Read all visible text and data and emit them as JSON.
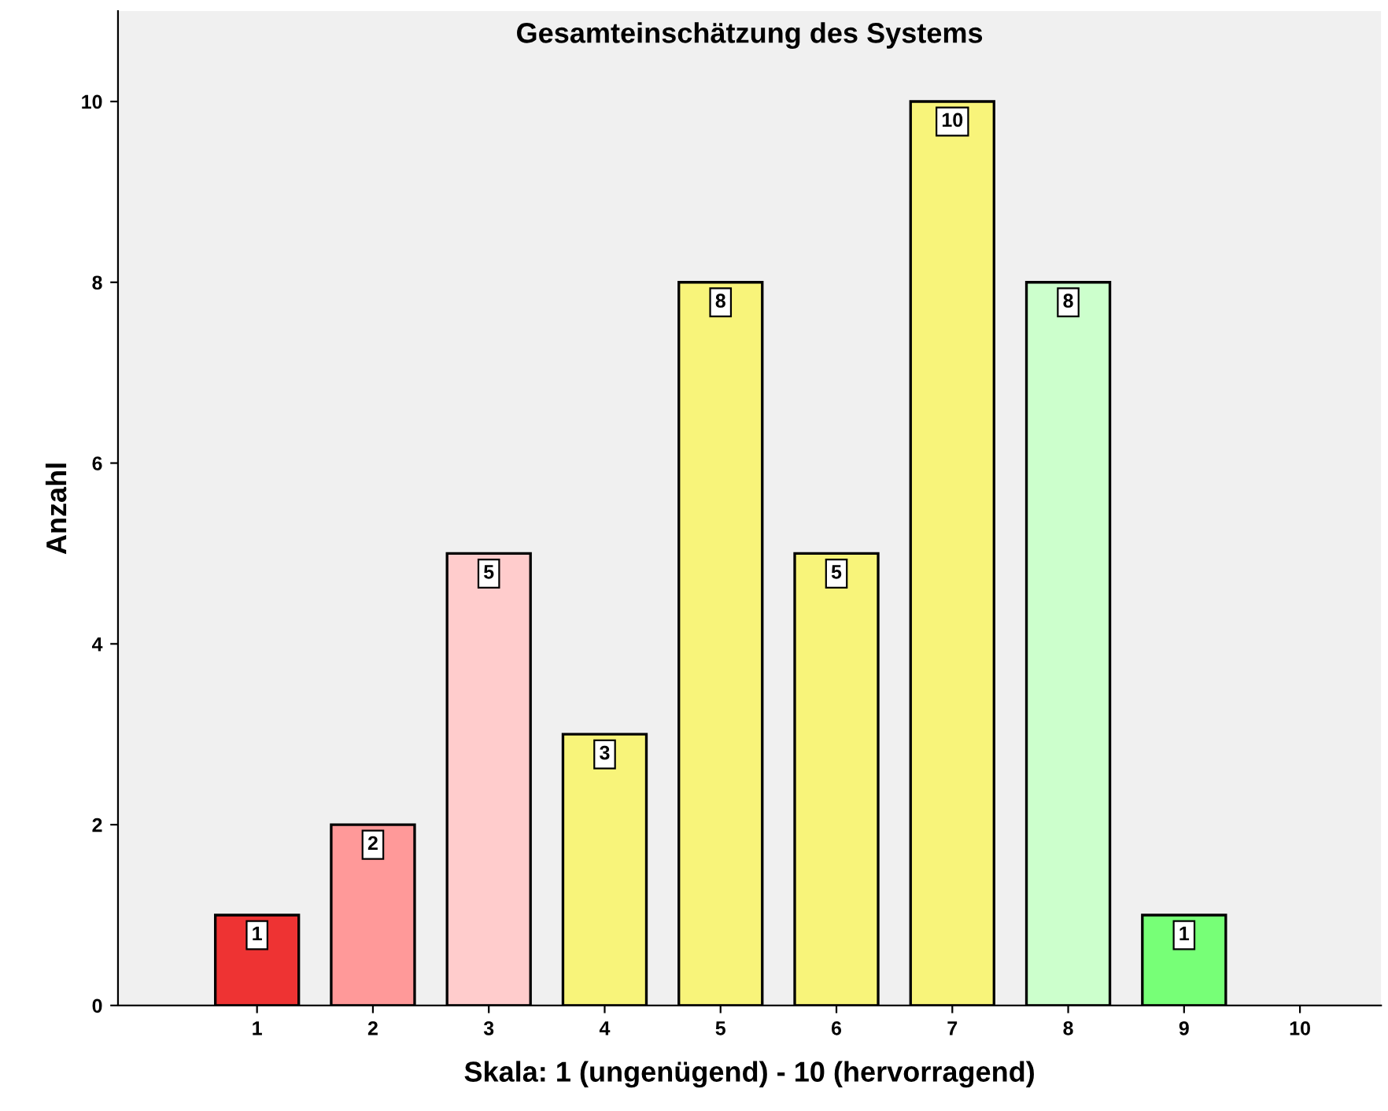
{
  "chart_data": {
    "type": "bar",
    "title": "Gesamteinschätzung des Systems",
    "xlabel": "Skala: 1 (ungenügend) - 10 (hervorragend)",
    "ylabel": "Anzahl",
    "categories": [
      "1",
      "2",
      "3",
      "4",
      "5",
      "6",
      "7",
      "8",
      "9",
      "10"
    ],
    "values": [
      1,
      2,
      5,
      3,
      8,
      5,
      10,
      8,
      1,
      null
    ],
    "colors": [
      "#ee3333",
      "#ff9999",
      "#ffcccc",
      "#f8f47a",
      "#f8f47a",
      "#f8f47a",
      "#f8f47a",
      "#ccffcc",
      "#77ff77",
      null
    ],
    "value_labels": [
      "1",
      "2",
      "5",
      "3",
      "8",
      "5",
      "10",
      "8",
      "1",
      null
    ],
    "ylim": [
      0,
      11
    ],
    "yticks": [
      0,
      2,
      4,
      6,
      8,
      10
    ],
    "grid": false,
    "legend": false
  }
}
